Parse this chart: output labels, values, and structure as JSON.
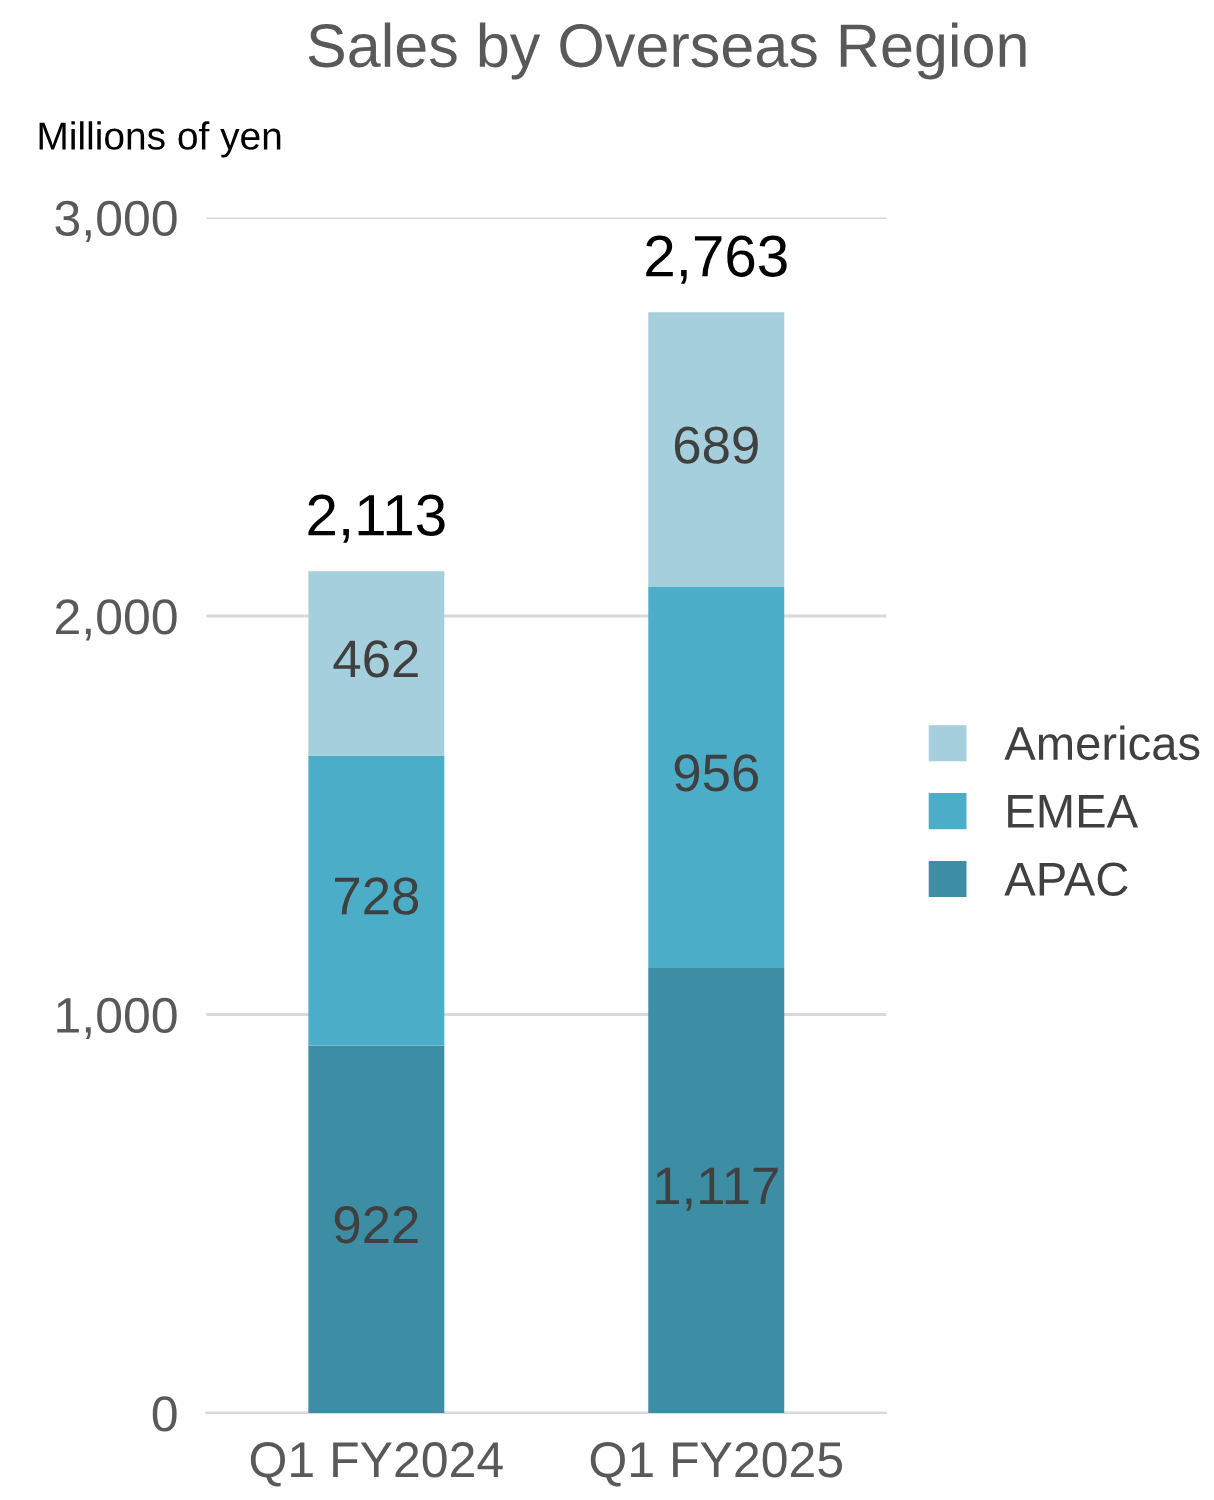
{
  "chart_data": {
    "type": "bar",
    "title": "Sales by Overseas Region",
    "ylabel": "Millions of yen",
    "categories": [
      "Q1 FY2024",
      "Q1 FY2025"
    ],
    "stacked": true,
    "series": [
      {
        "name": "APAC",
        "color": "#3d8ea4",
        "values": [
          922,
          1117
        ],
        "value_labels": [
          "922",
          "1,117"
        ]
      },
      {
        "name": "EMEA",
        "color": "#4badc7",
        "values": [
          728,
          956
        ],
        "value_labels": [
          "728",
          "956"
        ]
      },
      {
        "name": "Americas",
        "color": "#a6cfdd",
        "values": [
          462,
          689
        ],
        "value_labels": [
          "462",
          "689"
        ]
      }
    ],
    "totals": [
      "2,113",
      "2,763"
    ],
    "ylim": [
      0,
      3000
    ],
    "yticks": [
      0,
      {
        "value": 1000,
        "label": "1,000"
      },
      {
        "value": 2000,
        "label": "2,000"
      },
      {
        "value": 3000,
        "label": "3,000"
      }
    ],
    "grid": "y",
    "legend": "right"
  }
}
